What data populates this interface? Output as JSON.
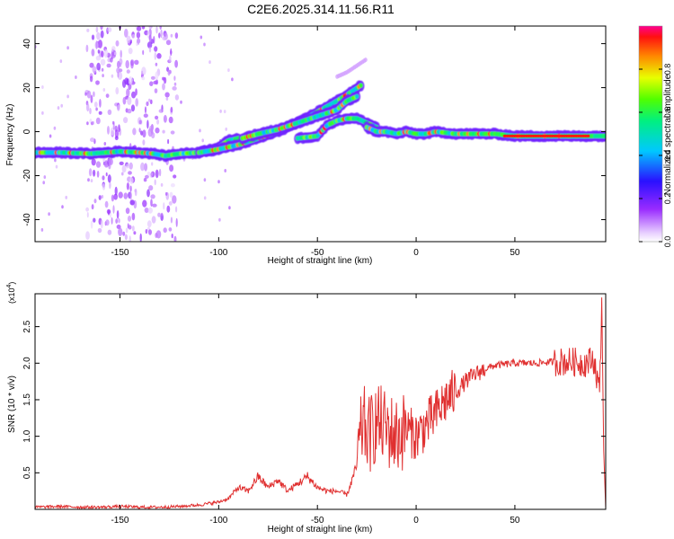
{
  "title": "C2E6.2025.314.11.56.R11",
  "chart_data": [
    {
      "type": "heatmap",
      "xlabel": "Height of straight line (km)",
      "ylabel": "Frequency (Hz)",
      "xlim": [
        -193,
        96
      ],
      "ylim": [
        -50,
        48
      ],
      "xticks": [
        "-150",
        "-100",
        "-50",
        "0",
        "50"
      ],
      "xtick_values": [
        -150,
        -100,
        -50,
        0,
        50
      ],
      "yticks": [
        "-40",
        "-20",
        "0",
        "20",
        "40"
      ],
      "ytick_values": [
        -40,
        -20,
        0,
        20,
        40
      ],
      "colorbar": {
        "label": "Normalized spectral amplitude",
        "ticks": [
          "0.0",
          "0.2",
          "0.4",
          "0.6",
          "0.8"
        ],
        "tick_values": [
          0.0,
          0.2,
          0.4,
          0.6,
          0.8
        ],
        "range": [
          0,
          1
        ],
        "colormap": "rainbow (magenta-blue-cyan-green-yellow-red)"
      },
      "traces": [
        {
          "x": [
            -193,
            -180,
            -165,
            -150,
            -140,
            -133,
            -127,
            -120,
            -110,
            -100,
            -95,
            -90
          ],
          "y": [
            -9.5,
            -9.5,
            -10,
            -9,
            -9.5,
            -10,
            -11,
            -10,
            -9.5,
            -7,
            -4,
            -3
          ]
        },
        {
          "x": [
            -110,
            -100,
            -90,
            -80,
            -70,
            -60,
            -50,
            -40,
            -33,
            -28
          ],
          "y": [
            -9.5,
            -8,
            -6,
            -3,
            0,
            4,
            9,
            14,
            18,
            21
          ]
        },
        {
          "x": [
            -88,
            -80,
            -70,
            -60,
            -50,
            -43,
            -40,
            -35,
            -30
          ],
          "y": [
            -3,
            -1,
            1,
            4,
            7,
            9,
            10,
            14,
            16
          ]
        },
        {
          "x": [
            -60,
            -50,
            -45,
            -40,
            -35,
            -30,
            -25,
            -20
          ],
          "y": [
            -3,
            -2,
            3,
            5,
            6,
            6,
            4,
            2
          ]
        },
        {
          "x": [
            -25,
            -20,
            -15,
            -10,
            -5,
            0,
            5,
            10,
            20,
            30,
            40,
            50,
            60,
            70,
            80,
            90,
            96
          ],
          "y": [
            2,
            0,
            0,
            -1,
            0,
            -1,
            -1,
            0,
            -1,
            -1,
            -1,
            -2,
            -2,
            -2,
            -2,
            -2,
            -2
          ]
        }
      ],
      "weak_trace": {
        "x": [
          -40,
          -35,
          -30,
          -25
        ],
        "y": [
          25,
          27,
          30,
          33
        ]
      },
      "clutter_bands_x": [
        -160,
        -150,
        -140,
        -128
      ]
    },
    {
      "type": "line",
      "xlabel": "Height of straight line (km)",
      "ylabel": "SNR (10 * v/v)",
      "multiplier": "(x10",
      "multiplier_exp": "4",
      "multiplier_close": ")",
      "xlim": [
        -193,
        96
      ],
      "ylim": [
        0,
        2.95
      ],
      "xticks": [
        "-150",
        "-100",
        "-50",
        "0",
        "50"
      ],
      "xtick_values": [
        -150,
        -100,
        -50,
        0,
        50
      ],
      "yticks": [
        "0.5",
        "1.0",
        "1.5",
        "2.0",
        "2.5"
      ],
      "ytick_values": [
        0.5,
        1.0,
        1.5,
        2.0,
        2.5
      ],
      "color": "#e03030",
      "series": [
        {
          "x": [
            -193,
            -180,
            -170,
            -160,
            -150,
            -140,
            -130,
            -120,
            -110,
            -105,
            -100,
            -95,
            -90,
            -85,
            -80,
            -75,
            -70,
            -65,
            -60,
            -55,
            -50,
            -45,
            -40,
            -35,
            -30,
            -27,
            -24,
            -20,
            -15,
            -10,
            -5,
            0,
            5,
            10,
            15,
            20,
            25,
            30,
            35,
            40,
            50,
            60,
            70,
            80,
            85,
            90,
            93,
            94,
            95,
            96
          ],
          "y": [
            0.03,
            0.04,
            0.03,
            0.03,
            0.04,
            0.03,
            0.03,
            0.04,
            0.06,
            0.08,
            0.1,
            0.15,
            0.3,
            0.25,
            0.45,
            0.3,
            0.4,
            0.25,
            0.35,
            0.45,
            0.3,
            0.25,
            0.25,
            0.2,
            0.6,
            1.2,
            1.0,
            1.2,
            1.1,
            1.0,
            1.1,
            1.0,
            1.15,
            1.3,
            1.5,
            1.6,
            1.75,
            1.85,
            1.92,
            1.97,
            2.0,
            2.0,
            2.02,
            2.02,
            2.0,
            2.05,
            1.6,
            2.9,
            0.8,
            0.02
          ]
        }
      ]
    }
  ]
}
